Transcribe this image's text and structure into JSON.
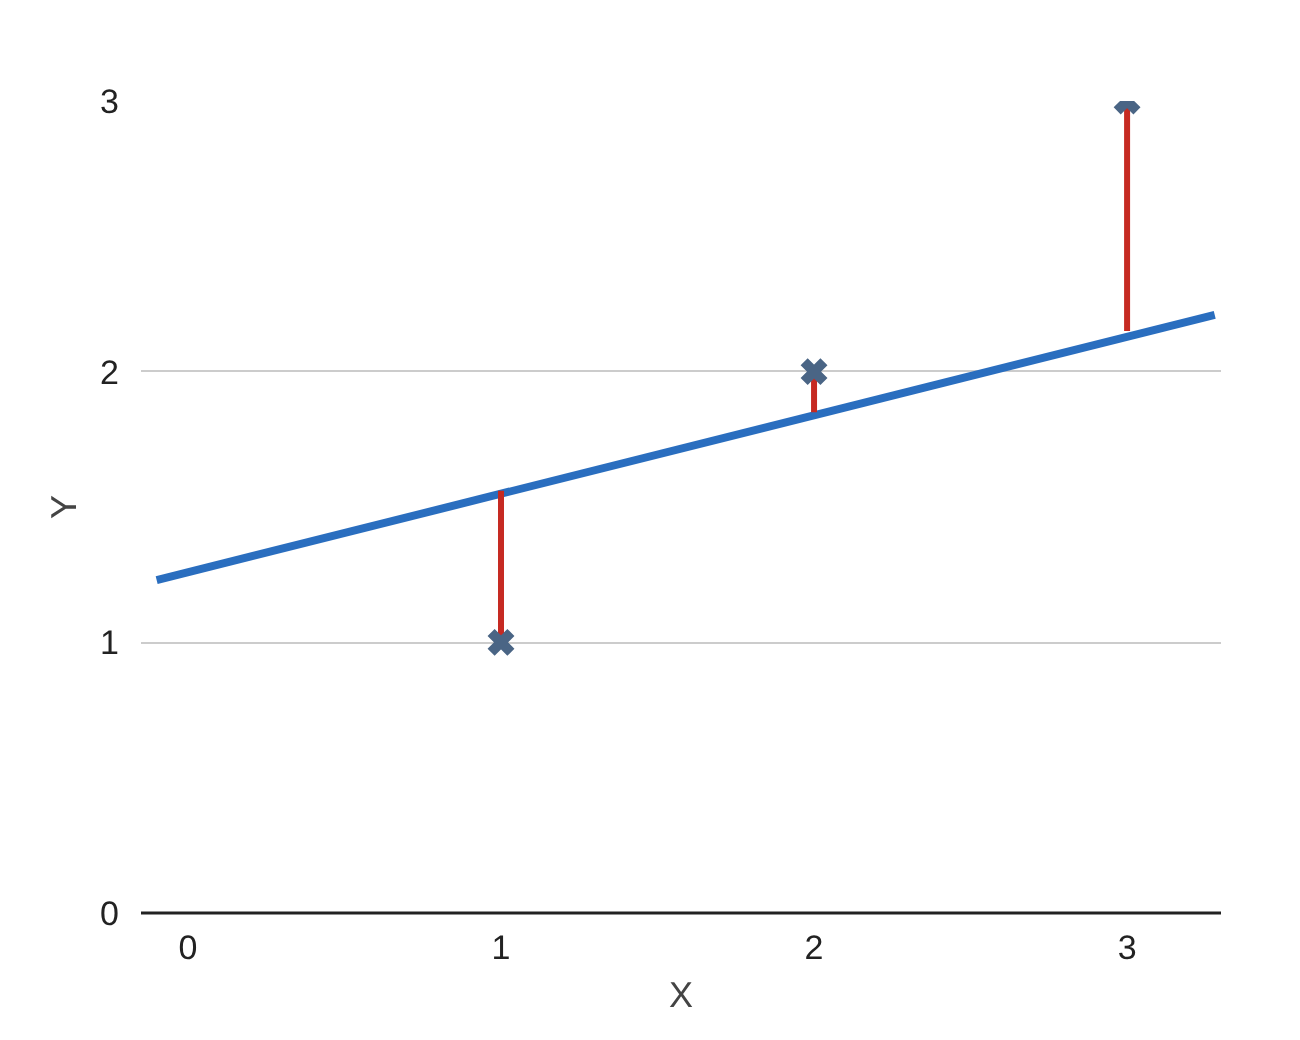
{
  "chart_data": {
    "type": "scatter",
    "xlabel": "X",
    "ylabel": "Y",
    "xlim": [
      -0.15,
      3.3
    ],
    "ylim": [
      0,
      3
    ],
    "xticks": [
      0,
      1,
      2,
      3
    ],
    "yticks": [
      0,
      1,
      2,
      3
    ],
    "grid": "y",
    "series": [
      {
        "color": "#4a6585",
        "marker": "cross",
        "x": [
          1,
          2,
          3
        ],
        "values": [
          1,
          2,
          3
        ],
        "errors": [
          [
            1,
            1.56
          ],
          [
            1.85,
            2
          ],
          [
            2.15,
            3
          ]
        ]
      },
      {
        "type": "line",
        "color": "#2a6ebf",
        "line_style": "solid",
        "x": [
          -0.1,
          3.28
        ],
        "values": [
          1.23,
          2.21
        ]
      }
    ]
  }
}
